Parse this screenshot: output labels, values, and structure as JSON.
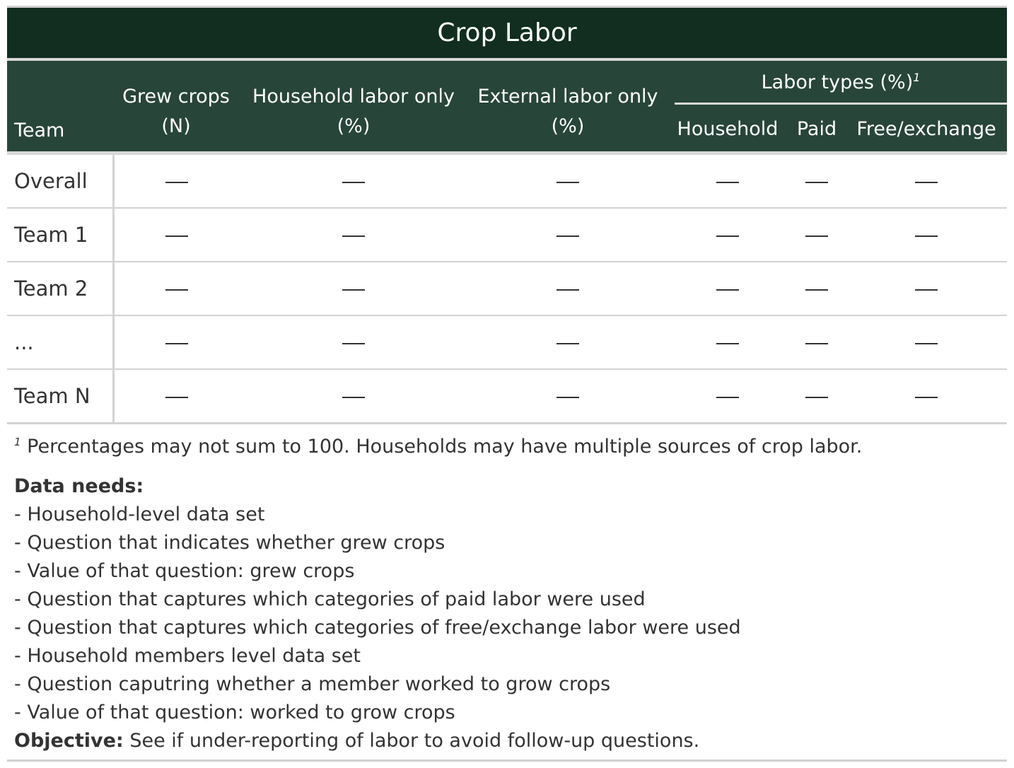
{
  "table": {
    "title": "Crop Labor",
    "columns": {
      "team": "Team",
      "grew_crops_line1": "Grew crops",
      "grew_crops_line2": "(N)",
      "household_only_line1": "Household labor only",
      "household_only_line2": "(%)",
      "external_only_line1": "External labor only",
      "external_only_line2": "(%)",
      "labor_types_spanner": "Labor types (%)",
      "labor_types_footnote_mark": "1",
      "household": "Household",
      "paid": "Paid",
      "free_exchange": "Free/exchange"
    },
    "placeholder": "—",
    "rows": [
      {
        "team": "Overall"
      },
      {
        "team": "Team 1"
      },
      {
        "team": "Team 2"
      },
      {
        "team": "..."
      },
      {
        "team": "Team N"
      }
    ]
  },
  "footnote": {
    "mark": "1",
    "text": "Percentages may not sum to 100. Households may have multiple sources of crop labor."
  },
  "notes": {
    "data_needs_label": "Data needs:",
    "data_needs": [
      "- Household-level data set",
      "- Question that indicates whether grew crops",
      "- Value of that question: grew crops",
      "- Question that captures which categories of paid labor were used",
      "- Question that captures which categories of free/exchange labor were used",
      "- Household members level data set",
      "- Question caputring whether a member worked to grow crops",
      "- Value of that question: worked to grow crops"
    ],
    "objective_label": "Objective:",
    "objective_text": "See if under-reporting of labor to avoid follow-up questions."
  },
  "colors": {
    "title_bg": "#112e20",
    "header_bg": "#28453a",
    "header_text": "#ffffff",
    "body_text": "#333333",
    "rule": "#d3d3d3"
  }
}
